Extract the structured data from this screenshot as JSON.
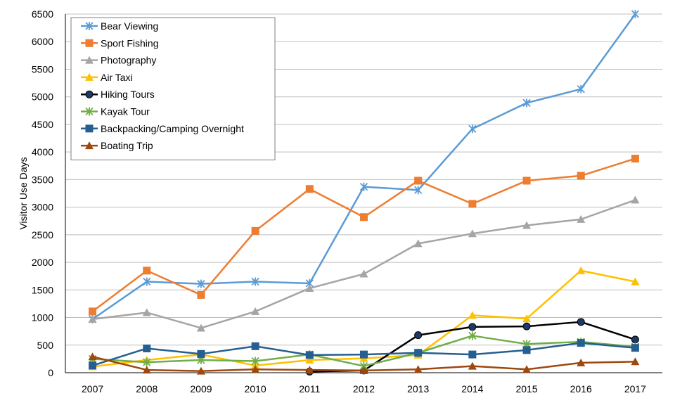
{
  "chart_data": {
    "type": "line",
    "title": "",
    "xlabel": "",
    "ylabel": "Visitor Use Days",
    "ylim": [
      0,
      6500
    ],
    "yticks": [
      0,
      500,
      1000,
      1500,
      2000,
      2500,
      3000,
      3500,
      4000,
      4500,
      5000,
      5500,
      6000,
      6500
    ],
    "x": [
      "2007",
      "2008",
      "2009",
      "2010",
      "2011",
      "2012",
      "2013",
      "2014",
      "2015",
      "2016",
      "2017"
    ],
    "grid": true,
    "legend_position": "top-left",
    "series": [
      {
        "name": "Bear Viewing",
        "color": "#5b9bd5",
        "marker": "asterisk",
        "values": [
          970,
          1650,
          1610,
          1650,
          1620,
          3370,
          3310,
          4420,
          4890,
          5140,
          6500
        ]
      },
      {
        "name": "Sport Fishing",
        "color": "#ed7d31",
        "marker": "square",
        "values": [
          1110,
          1850,
          1410,
          2570,
          3330,
          2820,
          3480,
          3060,
          3480,
          3570,
          3880
        ]
      },
      {
        "name": "Photography",
        "color": "#a5a5a5",
        "marker": "triangle",
        "values": [
          970,
          1090,
          810,
          1110,
          1530,
          1790,
          2340,
          2520,
          2670,
          2780,
          3130
        ]
      },
      {
        "name": "Air Taxi",
        "color": "#ffc000",
        "marker": "triangle",
        "values": [
          110,
          230,
          330,
          130,
          230,
          260,
          320,
          1040,
          980,
          1850,
          1650
        ]
      },
      {
        "name": "Hiking Tours",
        "color": "#000000",
        "marker": "circle",
        "values": [
          null,
          null,
          null,
          null,
          20,
          40,
          680,
          830,
          840,
          920,
          600
        ]
      },
      {
        "name": "Kayak Tour",
        "color": "#70ad47",
        "marker": "asterisk",
        "values": [
          250,
          190,
          230,
          210,
          330,
          120,
          360,
          670,
          520,
          560,
          470
        ]
      },
      {
        "name": "Backpacking/Camping Overnight",
        "color": "#255e91",
        "marker": "square",
        "values": [
          130,
          440,
          340,
          480,
          320,
          330,
          360,
          330,
          410,
          540,
          450
        ]
      },
      {
        "name": "Boating Trip",
        "color": "#9e480e",
        "marker": "triangle",
        "values": [
          290,
          50,
          30,
          60,
          50,
          40,
          60,
          120,
          60,
          180,
          200
        ]
      }
    ]
  }
}
